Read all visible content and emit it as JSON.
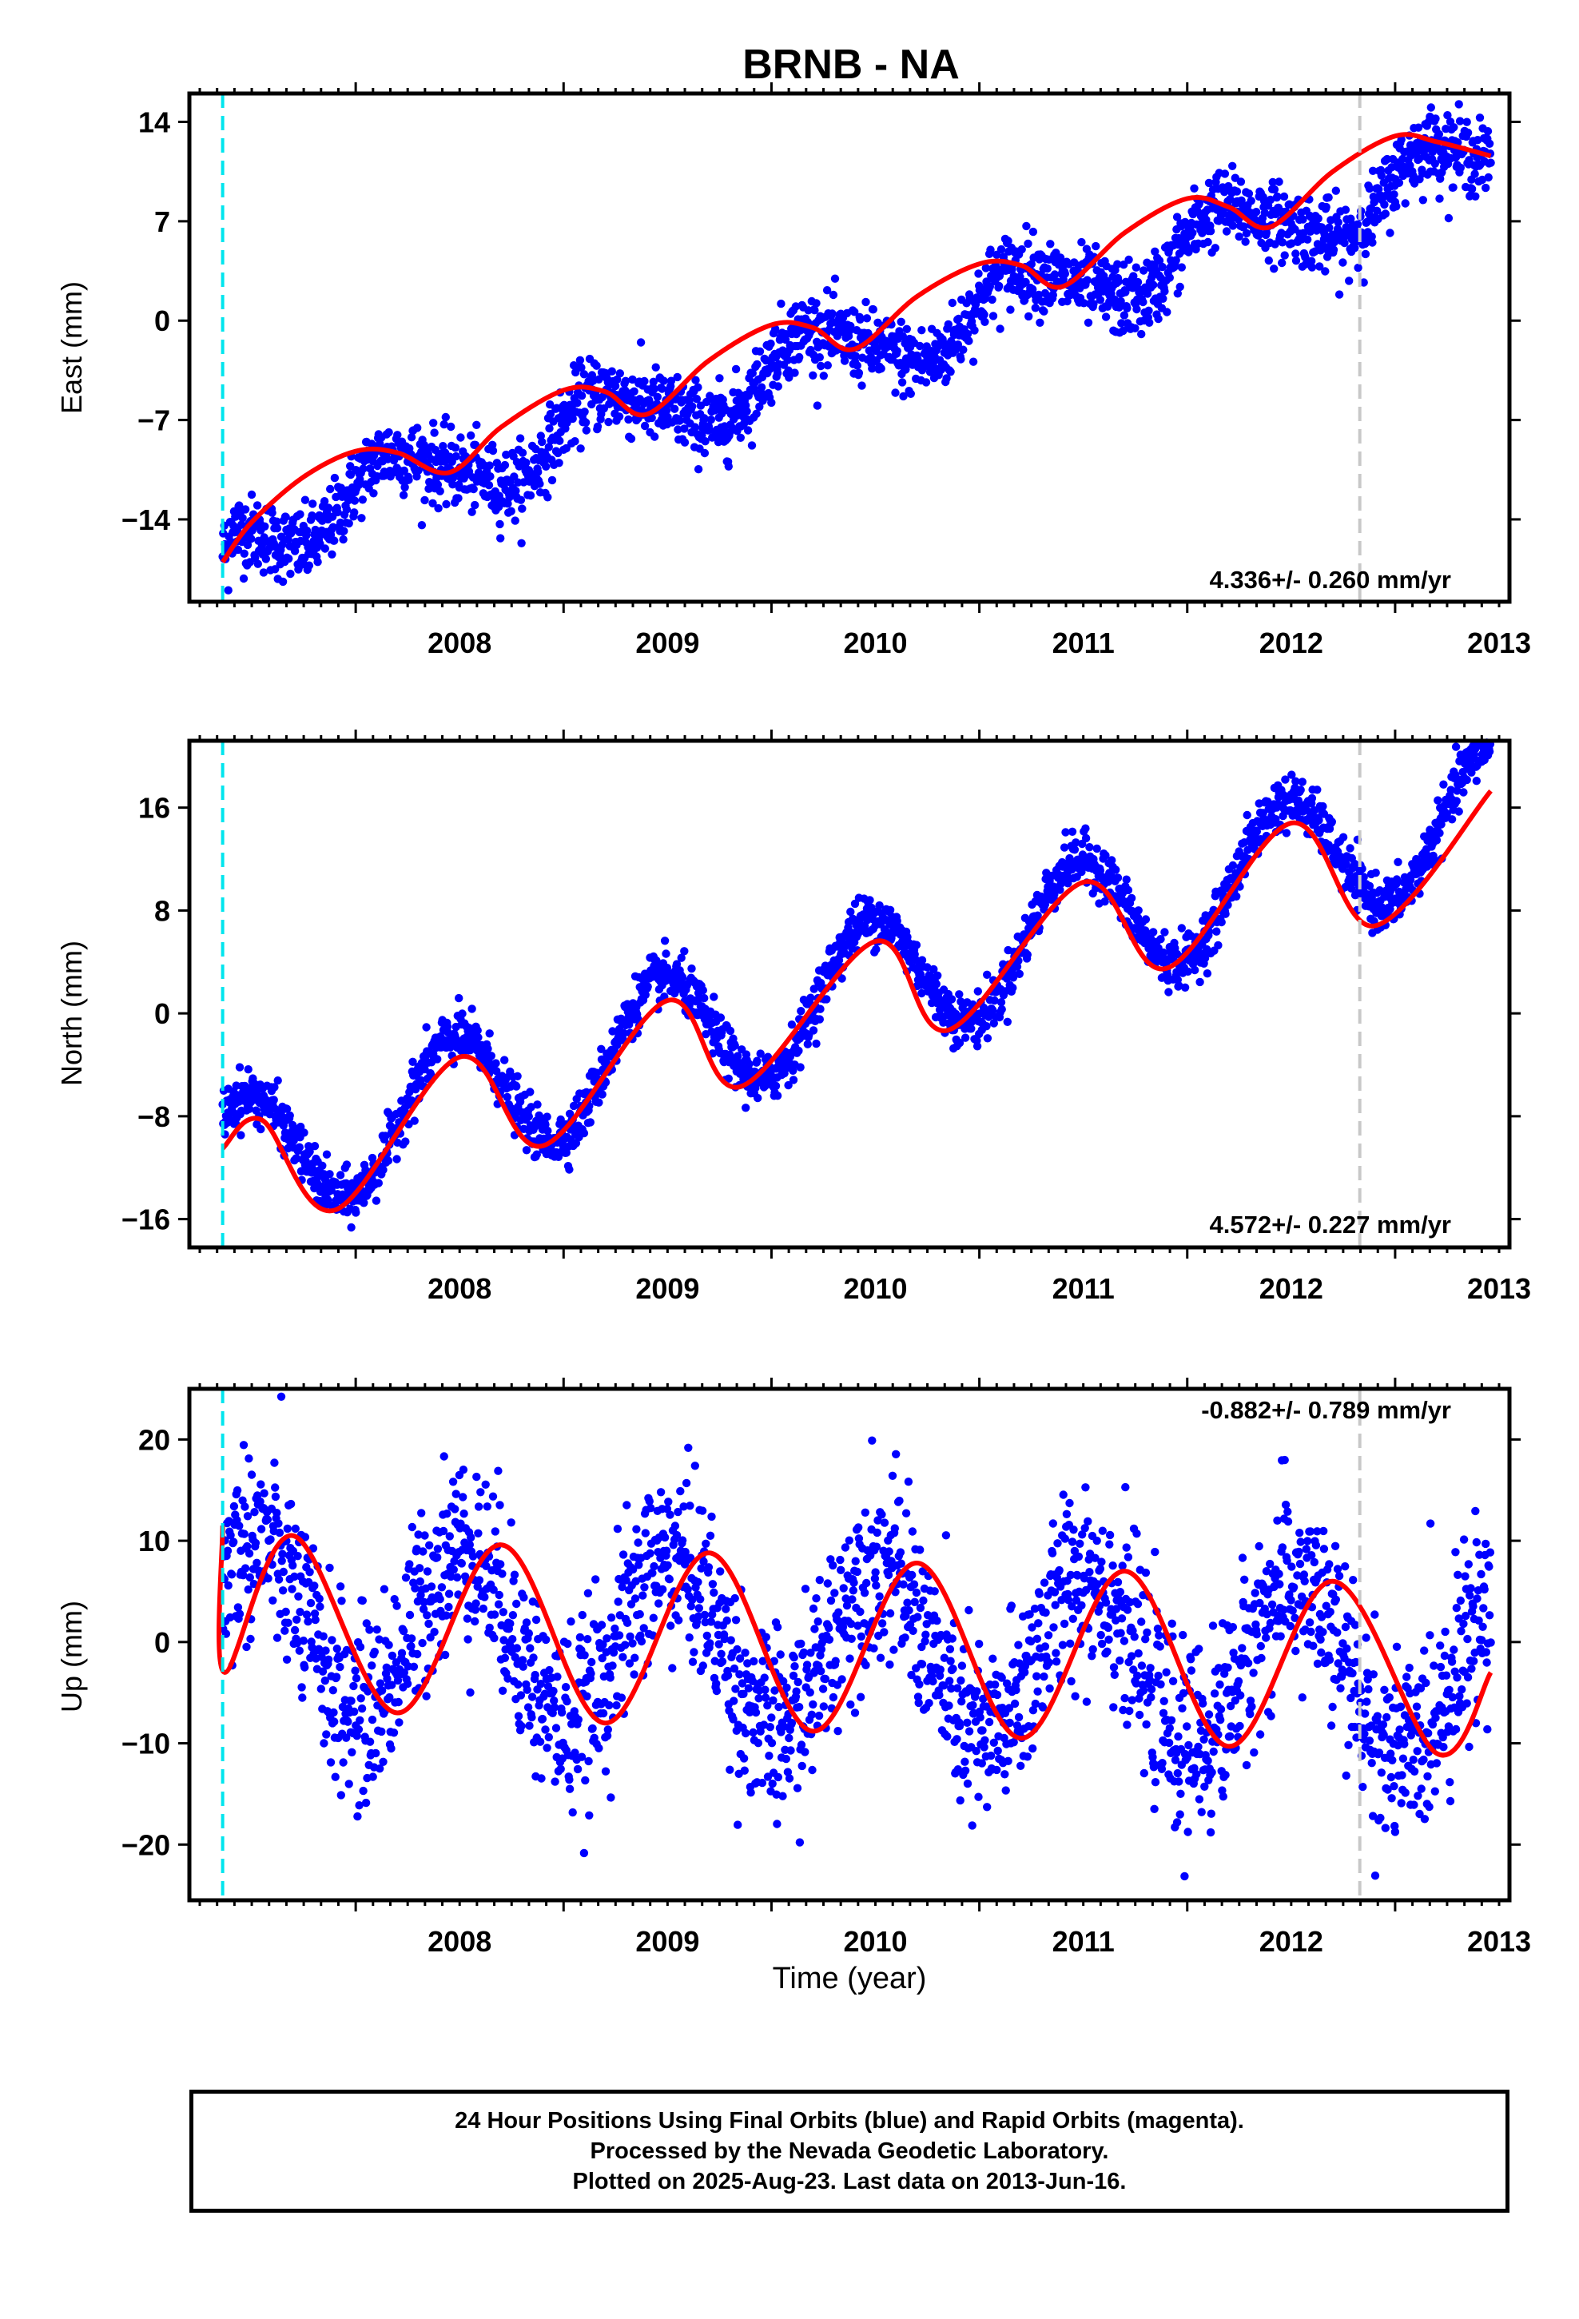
{
  "title": "BRNB - NA",
  "xlabel": "Time (year)",
  "colors": {
    "data": "#0000ff",
    "model": "#ff0000",
    "start_line": "#00e5ee",
    "event_line": "#c8c8c8",
    "frame": "#000000"
  },
  "caption": [
    "24 Hour Positions Using Final Orbits (blue) and Rapid Orbits (magenta).",
    "Processed by the Nevada Geodetic Laboratory.",
    "Plotted on 2025-Aug-23. Last data on 2013-Jun-16."
  ],
  "chart_data": [
    {
      "type": "scatter",
      "ylabel": "East (mm)",
      "rate_label": "4.336+/- 0.260 mm/yr",
      "rate_position": "bottom-right",
      "xlim": [
        2007.2,
        2013.55
      ],
      "ylim": [
        -19.8,
        16.0
      ],
      "yticks": [
        -14,
        -7,
        0,
        7,
        14
      ],
      "xticks": [
        2008,
        2009,
        2010,
        2011,
        2012,
        2013
      ],
      "start_line_x": 2007.36,
      "event_line_x": 2012.83,
      "data_x_range": [
        2007.36,
        2013.46
      ],
      "trend": {
        "intercept": -15.2,
        "rate": 4.336,
        "ref_year": 2007.36
      },
      "seasonal": {
        "amp_cos": 0.6,
        "amp_sin": 2.1,
        "amp_cos2": 0.3,
        "amp_sin2": 0.4,
        "offset_start": -1.8
      },
      "scatter_sigma": 1.3,
      "model_series": [
        {
          "x": 2007.36,
          "y": -17.0
        },
        {
          "x": 2007.5,
          "y": -14.2
        },
        {
          "x": 2007.75,
          "y": -11.0
        },
        {
          "x": 2008.0,
          "y": -9.2
        },
        {
          "x": 2008.2,
          "y": -9.3
        },
        {
          "x": 2008.45,
          "y": -10.7
        },
        {
          "x": 2008.7,
          "y": -7.5
        },
        {
          "x": 2009.0,
          "y": -4.9
        },
        {
          "x": 2009.2,
          "y": -5.0
        },
        {
          "x": 2009.4,
          "y": -6.6
        },
        {
          "x": 2009.7,
          "y": -2.8
        },
        {
          "x": 2010.0,
          "y": -0.3
        },
        {
          "x": 2010.2,
          "y": -0.5
        },
        {
          "x": 2010.4,
          "y": -2.0
        },
        {
          "x": 2010.7,
          "y": 1.7
        },
        {
          "x": 2011.0,
          "y": 4.0
        },
        {
          "x": 2011.2,
          "y": 3.9
        },
        {
          "x": 2011.4,
          "y": 2.4
        },
        {
          "x": 2011.7,
          "y": 6.2
        },
        {
          "x": 2012.0,
          "y": 8.6
        },
        {
          "x": 2012.2,
          "y": 8.0
        },
        {
          "x": 2012.4,
          "y": 6.6
        },
        {
          "x": 2012.7,
          "y": 10.5
        },
        {
          "x": 2013.0,
          "y": 13.0
        },
        {
          "x": 2013.2,
          "y": 12.6
        },
        {
          "x": 2013.46,
          "y": 11.6
        }
      ]
    },
    {
      "type": "scatter",
      "ylabel": "North (mm)",
      "rate_label": "4.572+/- 0.227 mm/yr",
      "rate_position": "bottom-right",
      "xlim": [
        2007.2,
        2013.55
      ],
      "ylim": [
        -18.2,
        21.2
      ],
      "yticks": [
        -16,
        -8,
        0,
        8,
        16
      ],
      "xticks": [
        2008,
        2009,
        2010,
        2011,
        2012,
        2013
      ],
      "start_line_x": 2007.36,
      "event_line_x": 2012.83,
      "data_x_range": [
        2007.36,
        2013.46
      ],
      "trend": {
        "intercept": -12.0,
        "rate": 4.572,
        "ref_year": 2007.36
      },
      "seasonal": {
        "amp_cos": -5.0,
        "amp_sin": 1.0,
        "amp_cos2": 0.0,
        "amp_sin2": 0.0,
        "offset_start": 0.0
      },
      "scatter_sigma": 1.0,
      "model_series": [
        {
          "x": 2007.36,
          "y": -10.5
        },
        {
          "x": 2007.55,
          "y": -8.3
        },
        {
          "x": 2007.9,
          "y": -15.3
        },
        {
          "x": 2008.5,
          "y": -3.4
        },
        {
          "x": 2008.9,
          "y": -10.3
        },
        {
          "x": 2009.5,
          "y": 1.0
        },
        {
          "x": 2009.85,
          "y": -5.7
        },
        {
          "x": 2010.5,
          "y": 5.6
        },
        {
          "x": 2010.85,
          "y": -1.3
        },
        {
          "x": 2011.5,
          "y": 10.2
        },
        {
          "x": 2011.9,
          "y": 3.5
        },
        {
          "x": 2012.5,
          "y": 14.8
        },
        {
          "x": 2012.9,
          "y": 6.8
        },
        {
          "x": 2013.46,
          "y": 17.3
        }
      ]
    },
    {
      "type": "scatter",
      "ylabel": "Up (mm)",
      "rate_label": "-0.882+/- 0.789 mm/yr",
      "rate_position": "top-right",
      "xlim": [
        2007.2,
        2013.55
      ],
      "ylim": [
        -25.5,
        25.0
      ],
      "yticks": [
        -20,
        -10,
        0,
        10,
        20
      ],
      "xticks": [
        2008,
        2009,
        2010,
        2011,
        2012,
        2013
      ],
      "start_line_x": 2007.36,
      "event_line_x": 2012.83,
      "data_x_range": [
        2007.36,
        2013.46
      ],
      "trend": {
        "intercept": 2.0,
        "rate": -0.882,
        "ref_year": 2007.36
      },
      "seasonal": {
        "amp_cos": -8.3,
        "amp_sin": -1.0,
        "amp_cos2": 0.0,
        "amp_sin2": 0.0,
        "offset_start": 0.0
      },
      "scatter_sigma": 4.6,
      "model_series": [
        {
          "x": 2007.36,
          "y": 11.5
        },
        {
          "x": 2007.37,
          "y": -3.0
        },
        {
          "x": 2007.7,
          "y": 10.5
        },
        {
          "x": 2008.2,
          "y": -7.0
        },
        {
          "x": 2008.7,
          "y": 9.6
        },
        {
          "x": 2009.2,
          "y": -8.0
        },
        {
          "x": 2009.7,
          "y": 8.8
        },
        {
          "x": 2010.2,
          "y": -8.8
        },
        {
          "x": 2010.7,
          "y": 7.8
        },
        {
          "x": 2011.2,
          "y": -9.5
        },
        {
          "x": 2011.7,
          "y": 7.0
        },
        {
          "x": 2012.2,
          "y": -10.3
        },
        {
          "x": 2012.7,
          "y": 6.0
        },
        {
          "x": 2013.2,
          "y": -11.0
        },
        {
          "x": 2013.46,
          "y": -3.0
        }
      ]
    }
  ]
}
